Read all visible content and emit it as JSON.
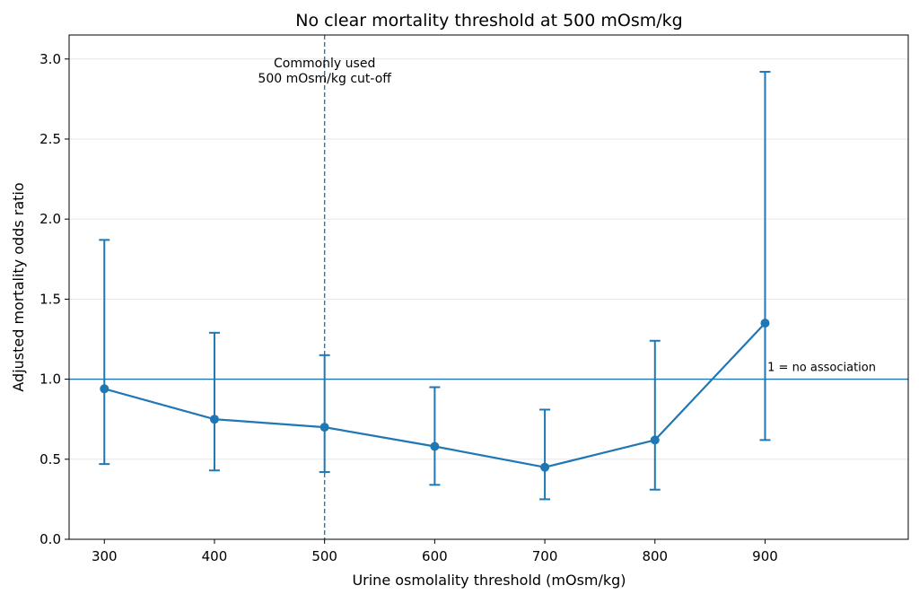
{
  "chart_data": {
    "type": "line",
    "title": "No clear mortality threshold at 500 mOsm/kg",
    "xlabel": "Urine osmolality threshold (mOsm/kg)",
    "ylabel": "Adjusted mortality odds ratio",
    "xlim": [
      268,
      1030
    ],
    "ylim": [
      0,
      3.15
    ],
    "x_ticks": [
      300,
      400,
      500,
      600,
      700,
      800,
      900
    ],
    "y_ticks": [
      0.0,
      0.5,
      1.0,
      1.5,
      2.0,
      2.5,
      3.0
    ],
    "y_tick_labels": [
      "0.0",
      "0.5",
      "1.0",
      "1.5",
      "2.0",
      "2.5",
      "3.0"
    ],
    "grid": "horizontal",
    "series": [
      {
        "color": "#1f77b4",
        "x": [
          300,
          400,
          500,
          600,
          700,
          800,
          900
        ],
        "y": [
          0.94,
          0.75,
          0.7,
          0.58,
          0.45,
          0.62,
          1.35
        ],
        "ci_low": [
          0.47,
          0.43,
          0.42,
          0.34,
          0.25,
          0.31,
          0.62
        ],
        "ci_high": [
          1.87,
          1.29,
          1.15,
          0.95,
          0.81,
          1.24,
          2.92
        ]
      }
    ],
    "reference_lines": [
      {
        "orientation": "vertical",
        "value": 500,
        "style": "dashed",
        "color": "#1f77b4",
        "label_lines": [
          "Commonly used",
          "500 mOsm/kg cut-off"
        ]
      },
      {
        "orientation": "horizontal",
        "value": 1.0,
        "style": "solid",
        "color": "#1f77b4",
        "label": "1 = no association"
      }
    ]
  }
}
